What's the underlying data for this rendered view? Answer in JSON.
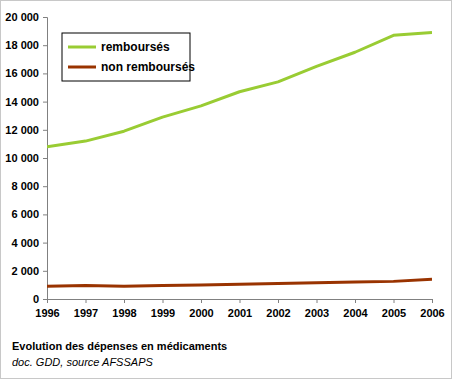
{
  "chart_data": {
    "type": "line",
    "title": "Evolution des dépenses en médicaments",
    "subtitle": "doc. GDD, source AFSSAPS",
    "categories": [
      "1996",
      "1997",
      "1998",
      "1999",
      "2000",
      "2001",
      "2002",
      "2003",
      "2004",
      "2005",
      "2006"
    ],
    "series": [
      {
        "name": "remboursés",
        "color": "#99cc33",
        "values": [
          10800,
          11200,
          11900,
          12900,
          13700,
          14700,
          15400,
          16500,
          17500,
          18700,
          18900
        ]
      },
      {
        "name": "non remboursés",
        "color": "#993300",
        "values": [
          900,
          950,
          900,
          950,
          1000,
          1050,
          1100,
          1150,
          1200,
          1250,
          1400
        ]
      }
    ],
    "ylim": [
      0,
      20000
    ],
    "yticks": [
      0,
      {
        "value": 2000,
        "label": "2 000"
      },
      {
        "value": 4000,
        "label": "4 000"
      },
      {
        "value": 6000,
        "label": "6 000"
      },
      {
        "value": 8000,
        "label": "8 000"
      },
      {
        "value": 10000,
        "label": "10 000"
      },
      {
        "value": 12000,
        "label": "12 000"
      },
      {
        "value": 14000,
        "label": "14 000"
      },
      {
        "value": 16000,
        "label": "16 000"
      },
      {
        "value": 18000,
        "label": "18 000"
      },
      {
        "value": 20000,
        "label": "20 000"
      }
    ],
    "grid": false,
    "legend": "upper left"
  }
}
